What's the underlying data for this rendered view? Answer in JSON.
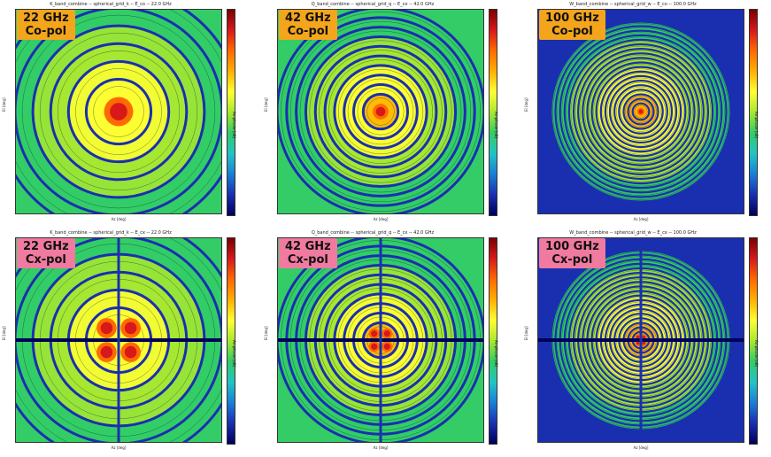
{
  "colormap": [
    "#00005a",
    "#1a2fb0",
    "#1a7fd6",
    "#22c4c4",
    "#33cc66",
    "#a8e830",
    "#ffff33",
    "#ffb000",
    "#ff6a00",
    "#d7191c",
    "#7a0000"
  ],
  "contour_color": "#0a2a3a",
  "colorbar_label": "Amplitude [dB]",
  "chart_data": [
    {
      "type": "heatmap",
      "title": "K_band_combine -- spherical_grid_k -- E_co -- 22.0 GHz",
      "badge_line1": "22 GHz",
      "badge_line2": "Co-pol",
      "badge_color": "#f4a51c",
      "xlabel": "Az [deg]",
      "ylabel": "El [deg]",
      "pattern": "co",
      "frequency_ghz": 22,
      "rings": 5,
      "xlim": [
        -0.15,
        0.15
      ],
      "ylim": [
        -0.15,
        0.15
      ]
    },
    {
      "type": "heatmap",
      "title": "Q_band_combine -- spherical_grid_q -- E_co -- 42.0 GHz",
      "badge_line1": "42 GHz",
      "badge_line2": "Co-pol",
      "badge_color": "#f4a51c",
      "xlabel": "Az [deg]",
      "ylabel": "El [deg]",
      "pattern": "co",
      "frequency_ghz": 42,
      "rings": 10,
      "xlim": [
        -0.15,
        0.15
      ],
      "ylim": [
        -0.15,
        0.15
      ]
    },
    {
      "type": "heatmap",
      "title": "W_band_combine -- spherical_grid_w -- E_co -- 100.0 GHz",
      "badge_line1": "100 GHz",
      "badge_line2": "Co-pol",
      "badge_color": "#f4a51c",
      "xlabel": "Az [deg]",
      "ylabel": "El [deg]",
      "pattern": "co",
      "frequency_ghz": 100,
      "rings": 22,
      "xlim": [
        -0.15,
        0.15
      ],
      "ylim": [
        -0.15,
        0.15
      ]
    },
    {
      "type": "heatmap",
      "title": "K_band_combine -- spherical_grid_k -- E_cx -- 22.0 GHz",
      "badge_line1": "22 GHz",
      "badge_line2": "Cx-pol",
      "badge_color": "#f07aa0",
      "xlabel": "Az [deg]",
      "ylabel": "El [deg]",
      "pattern": "cx",
      "frequency_ghz": 22,
      "rings": 5,
      "xlim": [
        -0.15,
        0.15
      ],
      "ylim": [
        -0.15,
        0.15
      ]
    },
    {
      "type": "heatmap",
      "title": "Q_band_combine -- spherical_grid_q -- E_cx -- 42.0 GHz",
      "badge_line1": "42 GHz",
      "badge_line2": "Cx-pol",
      "badge_color": "#f07aa0",
      "xlabel": "Az [deg]",
      "ylabel": "El [deg]",
      "pattern": "cx",
      "frequency_ghz": 42,
      "rings": 10,
      "xlim": [
        -0.15,
        0.15
      ],
      "ylim": [
        -0.15,
        0.15
      ]
    },
    {
      "type": "heatmap",
      "title": "W_band_combine -- spherical_grid_w -- E_cx -- 100.0 GHz",
      "badge_line1": "100 GHz",
      "badge_line2": "Cx-pol",
      "badge_color": "#f07aa0",
      "xlabel": "Az [deg]",
      "ylabel": "El [deg]",
      "pattern": "cx",
      "frequency_ghz": 100,
      "rings": 22,
      "xlim": [
        -0.15,
        0.15
      ],
      "ylim": [
        -0.15,
        0.15
      ]
    }
  ]
}
